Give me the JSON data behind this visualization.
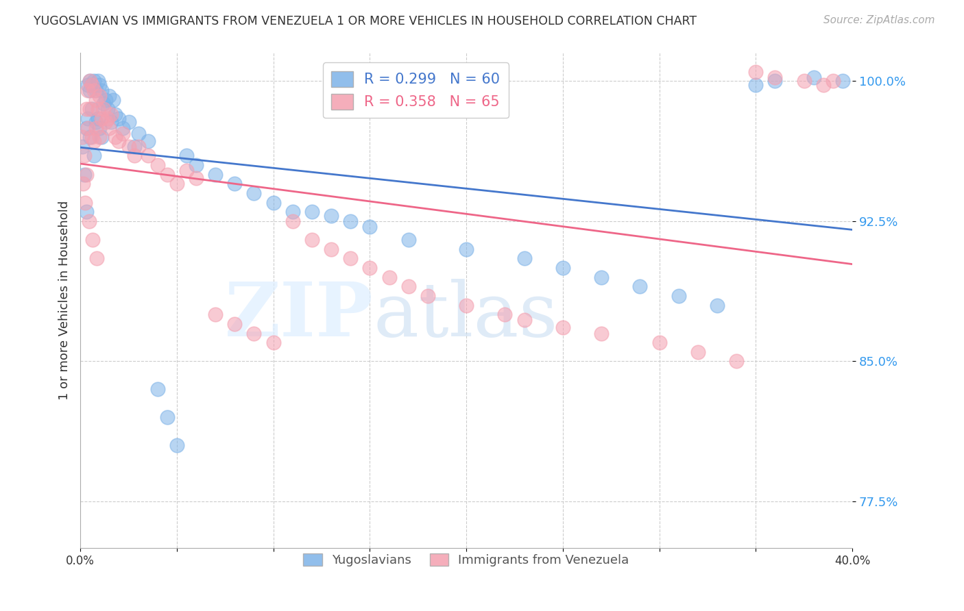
{
  "title": "YUGOSLAVIAN VS IMMIGRANTS FROM VENEZUELA 1 OR MORE VEHICLES IN HOUSEHOLD CORRELATION CHART",
  "source": "Source: ZipAtlas.com",
  "ylabel": "1 or more Vehicles in Household",
  "xlim": [
    0.0,
    40.0
  ],
  "ylim": [
    75.0,
    101.5
  ],
  "yticks": [
    77.5,
    85.0,
    92.5,
    100.0
  ],
  "ytick_labels": [
    "77.5%",
    "85.0%",
    "92.5%",
    "100.0%"
  ],
  "blue_color": "#7EB3E8",
  "pink_color": "#F4A0B0",
  "blue_line_color": "#4477CC",
  "pink_line_color": "#EE6688",
  "legend_blue_label": "R = 0.299   N = 60",
  "legend_pink_label": "R = 0.358   N = 65",
  "legend_yug_label": "Yugoslavians",
  "legend_ven_label": "Immigrants from Venezuela",
  "background_color": "#ffffff",
  "blue_x": [
    0.1,
    0.2,
    0.3,
    0.3,
    0.4,
    0.4,
    0.5,
    0.5,
    0.5,
    0.6,
    0.6,
    0.7,
    0.7,
    0.8,
    0.8,
    0.9,
    0.9,
    1.0,
    1.0,
    1.1,
    1.1,
    1.2,
    1.3,
    1.4,
    1.5,
    1.6,
    1.7,
    1.8,
    2.0,
    2.2,
    2.5,
    2.8,
    3.0,
    3.5,
    4.0,
    4.5,
    5.0,
    5.5,
    6.0,
    7.0,
    8.0,
    9.0,
    10.0,
    11.0,
    12.0,
    13.0,
    14.0,
    15.0,
    17.0,
    20.0,
    23.0,
    25.0,
    27.0,
    29.0,
    31.0,
    33.0,
    35.0,
    36.0,
    38.0,
    39.5
  ],
  "blue_y": [
    96.5,
    95.0,
    97.5,
    93.0,
    99.8,
    98.0,
    100.0,
    99.5,
    97.0,
    99.8,
    98.5,
    100.0,
    96.0,
    99.5,
    97.8,
    100.0,
    98.0,
    99.8,
    97.5,
    99.5,
    97.0,
    98.8,
    99.0,
    98.5,
    99.2,
    97.8,
    99.0,
    98.2,
    98.0,
    97.5,
    97.8,
    96.5,
    97.2,
    96.8,
    83.5,
    82.0,
    80.5,
    96.0,
    95.5,
    95.0,
    94.5,
    94.0,
    93.5,
    93.0,
    93.0,
    92.8,
    92.5,
    92.2,
    91.5,
    91.0,
    90.5,
    90.0,
    89.5,
    89.0,
    88.5,
    88.0,
    99.8,
    100.0,
    100.2,
    100.0
  ],
  "pink_x": [
    0.1,
    0.2,
    0.3,
    0.3,
    0.4,
    0.4,
    0.5,
    0.5,
    0.6,
    0.6,
    0.7,
    0.7,
    0.8,
    0.8,
    0.9,
    1.0,
    1.0,
    1.1,
    1.2,
    1.3,
    1.4,
    1.5,
    1.6,
    1.8,
    2.0,
    2.2,
    2.5,
    2.8,
    3.0,
    3.5,
    4.0,
    4.5,
    5.0,
    5.5,
    6.0,
    7.0,
    8.0,
    9.0,
    10.0,
    11.0,
    12.0,
    13.0,
    14.0,
    15.0,
    16.0,
    17.0,
    18.0,
    20.0,
    22.0,
    23.0,
    25.0,
    27.0,
    30.0,
    32.0,
    34.0,
    35.0,
    36.0,
    37.5,
    38.5,
    39.0,
    0.15,
    0.25,
    0.45,
    0.65,
    0.85
  ],
  "pink_y": [
    97.0,
    96.0,
    98.5,
    95.0,
    99.5,
    97.5,
    100.0,
    98.5,
    99.8,
    97.0,
    99.5,
    96.8,
    99.0,
    97.5,
    98.5,
    99.2,
    97.0,
    98.0,
    98.5,
    97.8,
    98.0,
    97.5,
    98.2,
    97.0,
    96.8,
    97.2,
    96.5,
    96.0,
    96.5,
    96.0,
    95.5,
    95.0,
    94.5,
    95.2,
    94.8,
    87.5,
    87.0,
    86.5,
    86.0,
    92.5,
    91.5,
    91.0,
    90.5,
    90.0,
    89.5,
    89.0,
    88.5,
    88.0,
    87.5,
    87.2,
    86.8,
    86.5,
    86.0,
    85.5,
    85.0,
    100.5,
    100.2,
    100.0,
    99.8,
    100.0,
    94.5,
    93.5,
    92.5,
    91.5,
    90.5
  ]
}
